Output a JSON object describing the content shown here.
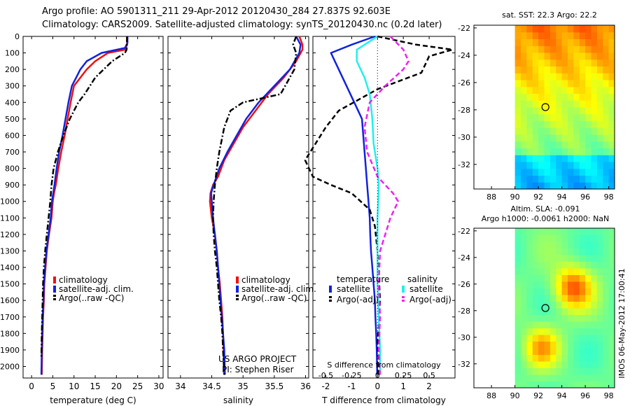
{
  "header": {
    "line1": "Argo profile: AO 5901311_211 29-Apr-2012 20120430_284 27.837S 92.603E",
    "line2": "Climatology: CARS2009. Satellite-adjusted climatology: synTS_20120430.nc (0.2d later)"
  },
  "side_stamp": "IMOS 06-May-2012 17:00:41",
  "colors": {
    "climatology": "#ee1111",
    "satellite": "#1122dd",
    "argo": "#000000",
    "sal_satellite": "#22eeee",
    "sal_argo": "#ee22ee"
  },
  "chart_data": [
    {
      "type": "line",
      "id": "temp",
      "xlabel": "temperature (deg C)",
      "xlim": [
        -2,
        31
      ],
      "ylim": [
        0,
        2070
      ],
      "xticks": [
        "0",
        "5",
        "10",
        "15",
        "20",
        "25",
        "30"
      ],
      "xtick_values": [
        0,
        5,
        10,
        15,
        20,
        25,
        30
      ],
      "yticks": [
        "0",
        "100",
        "200",
        "300",
        "400",
        "500",
        "600",
        "700",
        "800",
        "900",
        "1000",
        "1100",
        "1200",
        "1300",
        "1400",
        "1500",
        "1600",
        "1700",
        "1800",
        "1900",
        "2000"
      ],
      "ytick_values": [
        0,
        100,
        200,
        300,
        400,
        500,
        600,
        700,
        800,
        900,
        1000,
        1100,
        1200,
        1300,
        1400,
        1500,
        1600,
        1700,
        1800,
        1900,
        2000
      ],
      "legend": [
        "climatology",
        "satellite-adj. clim.",
        "Argo(..raw -QC)"
      ],
      "series": [
        {
          "name": "climatology",
          "style": "solid",
          "x": [
            22.5,
            22.5,
            22.1,
            18,
            15,
            13,
            11.5,
            10,
            9.2,
            8.5,
            7.8,
            7,
            6.3,
            5.7,
            5.3,
            5,
            4.7,
            4.1,
            3.6,
            3.3,
            3,
            2.9,
            2.7,
            2.6,
            2.5,
            2.4
          ],
          "y": [
            0,
            50,
            80,
            100,
            150,
            200,
            250,
            300,
            400,
            500,
            600,
            700,
            800,
            900,
            950,
            1000,
            1100,
            1200,
            1300,
            1400,
            1500,
            1600,
            1700,
            1800,
            1900,
            2050
          ]
        },
        {
          "name": "satellite-adj. clim.",
          "style": "solid",
          "x": [
            22.6,
            22.6,
            22,
            16.5,
            13,
            11.5,
            10.5,
            9.5,
            8.7,
            8,
            7.3,
            6.5,
            5.9,
            5.4,
            5.1,
            4.8,
            4.5,
            4,
            3.5,
            3.2,
            2.9,
            2.8,
            2.6,
            2.5,
            2.4,
            2.3
          ],
          "y": [
            0,
            40,
            70,
            100,
            150,
            200,
            250,
            300,
            400,
            500,
            600,
            700,
            800,
            900,
            950,
            1000,
            1100,
            1200,
            1300,
            1400,
            1500,
            1600,
            1700,
            1800,
            1900,
            2050
          ]
        },
        {
          "name": "Argo(..raw -QC)",
          "style": "dashdot",
          "x": [
            22.5,
            22.4,
            22,
            19,
            15,
            12.5,
            11,
            9,
            7.5,
            6.2,
            5.2,
            4.7,
            4.4,
            4,
            3.6,
            3.2,
            2.9,
            2.7,
            2.6,
            2.5,
            2.4,
            2.3
          ],
          "y": [
            0,
            80,
            100,
            150,
            250,
            350,
            400,
            500,
            600,
            700,
            800,
            900,
            1000,
            1100,
            1200,
            1300,
            1400,
            1500,
            1600,
            1700,
            1800,
            1950
          ]
        }
      ]
    },
    {
      "type": "line",
      "id": "sal",
      "xlabel": "salinity",
      "xlim": [
        33.8,
        36.05
      ],
      "ylim": [
        0,
        2070
      ],
      "xticks": [
        "34",
        "34.5",
        "35",
        "35.5",
        "36"
      ],
      "xtick_values": [
        34,
        34.5,
        35,
        35.5,
        36
      ],
      "legend": [
        "climatology",
        "satellite-adj. clim.",
        "Argo(..raw -QC)"
      ],
      "annotation": [
        "US ARGO PROJECT",
        "PI: Stephen Riser"
      ],
      "series": [
        {
          "name": "climatology",
          "style": "solid",
          "x": [
            35.9,
            35.95,
            35.95,
            35.85,
            35.65,
            35.4,
            35.2,
            35,
            34.85,
            34.7,
            34.6,
            34.52,
            34.48,
            34.47,
            34.5,
            34.55,
            34.58,
            34.6,
            34.63,
            34.65,
            34.67,
            34.68,
            34.69,
            34.7
          ],
          "y": [
            0,
            50,
            80,
            150,
            250,
            350,
            450,
            550,
            650,
            750,
            850,
            900,
            950,
            1000,
            1100,
            1200,
            1300,
            1400,
            1500,
            1600,
            1700,
            1800,
            1900,
            2050
          ]
        },
        {
          "name": "satellite-adj. clim.",
          "style": "solid",
          "x": [
            35.85,
            35.92,
            35.9,
            35.75,
            35.5,
            35.25,
            35.05,
            34.9,
            34.75,
            34.62,
            34.53,
            34.49,
            34.5,
            34.52,
            34.55,
            34.58,
            34.6,
            34.62,
            34.64,
            34.66,
            34.68,
            34.7,
            34.71
          ],
          "y": [
            0,
            50,
            100,
            200,
            300,
            400,
            500,
            600,
            700,
            800,
            900,
            950,
            1000,
            1100,
            1200,
            1300,
            1400,
            1500,
            1600,
            1700,
            1800,
            1900,
            2050
          ]
        },
        {
          "name": "Argo(..raw -QC)",
          "style": "dashdot",
          "x": [
            35.85,
            35.8,
            35.85,
            35.82,
            35.6,
            35,
            34.8,
            34.7,
            34.62,
            34.58,
            34.55,
            34.53,
            34.52,
            34.53,
            34.55,
            34.58,
            34.6,
            34.62,
            34.65,
            34.67,
            34.68,
            34.7
          ],
          "y": [
            0,
            50,
            100,
            200,
            350,
            400,
            450,
            550,
            700,
            800,
            900,
            1000,
            1100,
            1200,
            1300,
            1400,
            1500,
            1600,
            1700,
            1800,
            1900,
            2050
          ]
        }
      ]
    },
    {
      "type": "line",
      "id": "diff",
      "xlabel": "T difference from climatology",
      "xlabel_top": "S difference from climatology",
      "xlim": [
        -2.5,
        3
      ],
      "ylim": [
        0,
        2070
      ],
      "xticks": [
        "-2",
        "-1",
        "0",
        "1",
        "2"
      ],
      "xtick_values": [
        -2,
        -1,
        0,
        1,
        2
      ],
      "sticks": [
        "-0.5",
        "-0.25",
        "0",
        "0.25",
        "0.5"
      ],
      "stick_values": [
        -2,
        -1,
        0,
        1,
        2
      ],
      "legend_headers": [
        "temperature",
        "salinity"
      ],
      "legend": [
        "satellite",
        "Argo(-adj)",
        "satellite",
        "Argo(-adj)"
      ],
      "series": [
        {
          "name": "temperature satellite",
          "style": "solid",
          "x": [
            -0.1,
            -1,
            -1.8,
            -1.2,
            -0.9,
            -0.6,
            -0.5,
            -0.45,
            -0.4,
            -0.35,
            -0.3,
            -0.28,
            -0.25,
            -0.2,
            -0.15,
            -0.1,
            -0.08,
            -0.05,
            -0.03,
            -0.01
          ],
          "y": [
            0,
            50,
            100,
            300,
            400,
            500,
            700,
            800,
            900,
            1000,
            1100,
            1200,
            1300,
            1400,
            1500,
            1600,
            1700,
            1800,
            1900,
            2050
          ]
        },
        {
          "name": "temperature Argo(-adj)",
          "style": "dashed",
          "x": [
            0,
            1.5,
            2.9,
            2,
            1.7,
            0,
            -1.5,
            -2,
            -2.8,
            -2.5,
            -1.8,
            -1,
            -0.3,
            -0.1,
            0,
            0.05,
            0.1,
            0.05,
            0,
            0.05,
            0.02
          ],
          "y": [
            0,
            50,
            80,
            120,
            220,
            320,
            450,
            550,
            750,
            850,
            900,
            950,
            1050,
            1150,
            1300,
            1450,
            1600,
            1750,
            1850,
            1950,
            2050
          ]
        },
        {
          "name": "salinity satellite",
          "style": "solid",
          "x": [
            0,
            -0.8,
            -0.8,
            -0.5,
            -0.3,
            -0.2,
            -0.15,
            0,
            0.05,
            0.03,
            0,
            0,
            0,
            0.05,
            0.1,
            0.1
          ],
          "y": [
            0,
            80,
            150,
            250,
            350,
            500,
            650,
            800,
            900,
            1000,
            1100,
            1300,
            1500,
            1700,
            1900,
            2050
          ]
        },
        {
          "name": "salinity Argo(-adj)",
          "style": "dashed",
          "x": [
            0.5,
            1,
            1.2,
            1,
            0.3,
            -0.3,
            -0.5,
            -0.4,
            0,
            0.6,
            0.8,
            0.5,
            0.1,
            0.05,
            0.1,
            0.05,
            0.1
          ],
          "y": [
            0,
            80,
            150,
            200,
            300,
            400,
            550,
            700,
            850,
            950,
            1000,
            1100,
            1300,
            1500,
            1700,
            1900,
            2050
          ]
        }
      ]
    },
    {
      "type": "heatmap",
      "id": "sst",
      "title": "sat. SST: 22.3 Argo: 22.2",
      "xlim": [
        86.5,
        98.5
      ],
      "ylim": [
        -33.8,
        -21.8
      ],
      "xticks": [
        "88",
        "90",
        "92",
        "94",
        "96",
        "98"
      ],
      "xtick_values": [
        88,
        90,
        92,
        94,
        96,
        98
      ],
      "yticks": [
        "-22",
        "-24",
        "-26",
        "-28",
        "-30",
        "-32"
      ],
      "ytick_values": [
        -22,
        -24,
        -26,
        -28,
        -30,
        -32
      ],
      "marker": [
        92.6,
        -27.8
      ]
    },
    {
      "type": "heatmap",
      "id": "sla",
      "title_lines": [
        "Altim. SLA: -0.091",
        "Argo h1000: -0.0061 h2000: NaN"
      ],
      "xlim": [
        86.5,
        98.5
      ],
      "ylim": [
        -33.8,
        -21.8
      ],
      "xticks": [
        "88",
        "90",
        "92",
        "94",
        "96",
        "98"
      ],
      "xtick_values": [
        88,
        90,
        92,
        94,
        96,
        98
      ],
      "yticks": [
        "-22",
        "-24",
        "-26",
        "-28",
        "-30",
        "-32"
      ],
      "ytick_values": [
        -22,
        -24,
        -26,
        -28,
        -30,
        -32
      ],
      "marker": [
        92.6,
        -27.8
      ]
    }
  ]
}
